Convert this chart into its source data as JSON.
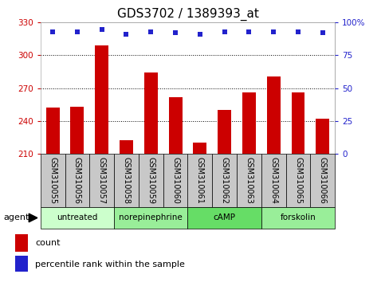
{
  "title": "GDS3702 / 1389393_at",
  "samples": [
    "GSM310055",
    "GSM310056",
    "GSM310057",
    "GSM310058",
    "GSM310059",
    "GSM310060",
    "GSM310061",
    "GSM310062",
    "GSM310063",
    "GSM310064",
    "GSM310065",
    "GSM310066"
  ],
  "counts": [
    252,
    253,
    309,
    222,
    284,
    262,
    220,
    250,
    266,
    281,
    266,
    242
  ],
  "percentiles": [
    93,
    93,
    95,
    91,
    93,
    92,
    91,
    93,
    93,
    93,
    93,
    92
  ],
  "bar_color": "#cc0000",
  "dot_color": "#2222cc",
  "ylim_left": [
    210,
    330
  ],
  "ylim_right": [
    0,
    100
  ],
  "yticks_left": [
    210,
    240,
    270,
    300,
    330
  ],
  "yticks_right": [
    0,
    25,
    50,
    75,
    100
  ],
  "ytick_right_labels": [
    "0",
    "25",
    "50",
    "75",
    "100%"
  ],
  "agent_groups": [
    {
      "label": "untreated",
      "start": 0,
      "end": 3
    },
    {
      "label": "norepinephrine",
      "start": 3,
      "end": 6
    },
    {
      "label": "cAMP",
      "start": 6,
      "end": 9
    },
    {
      "label": "forskolin",
      "start": 9,
      "end": 12
    }
  ],
  "group_colors": [
    "#ccffcc",
    "#99ee99",
    "#66dd66",
    "#99ee99"
  ],
  "sample_bg_color": "#c8c8c8",
  "legend_count_color": "#cc0000",
  "legend_pct_color": "#2222cc",
  "background_color": "#ffffff",
  "plot_bg_color": "#ffffff",
  "grid_color": "#000000",
  "title_fontsize": 11,
  "tick_fontsize": 7.5,
  "label_fontsize": 7,
  "bar_width": 0.55
}
